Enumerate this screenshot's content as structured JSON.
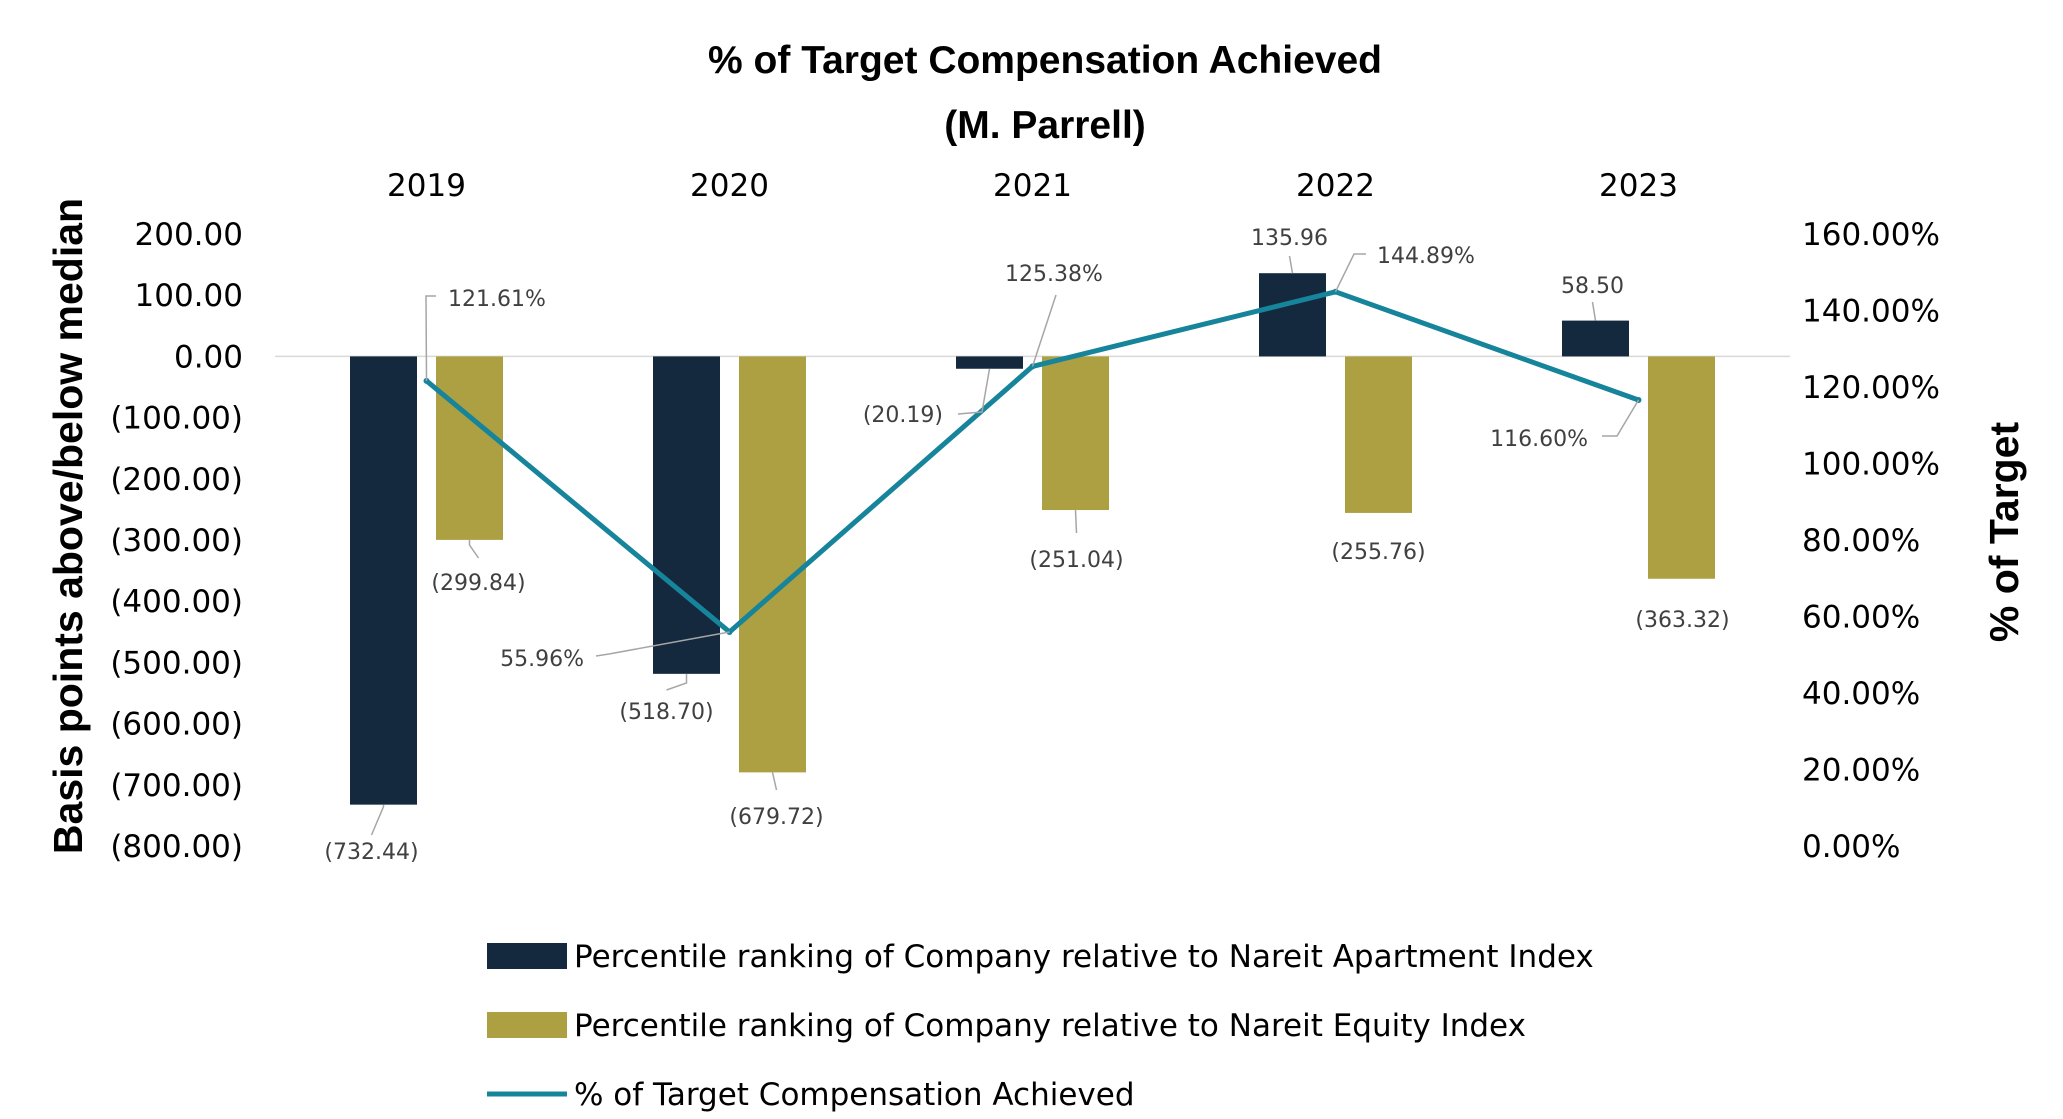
{
  "chart_data": {
    "type": "bar",
    "title": "% of Target Compensation Achieved",
    "subtitle": "(M. Parrell)",
    "categories": [
      "2019",
      "2020",
      "2021",
      "2022",
      "2023"
    ],
    "ylabel": "Basis points above/below median",
    "y2label": "% of Target",
    "ylim": [
      -800,
      200
    ],
    "y_ticks": [
      "200.00",
      "100.00",
      "0.00",
      "(100.00)",
      "(200.00)",
      "(300.00)",
      "(400.00)",
      "(500.00)",
      "(600.00)",
      "(700.00)",
      "(800.00)"
    ],
    "y2lim": [
      0,
      160
    ],
    "y2_ticks": [
      "160.00%",
      "140.00%",
      "120.00%",
      "100.00%",
      "80.00%",
      "60.00%",
      "40.00%",
      "20.00%",
      "0.00%"
    ],
    "series": [
      {
        "name": "Percentile ranking of Company relative to Nareit Apartment Index",
        "kind": "bar",
        "axis": "left",
        "color": "#14293d",
        "values": [
          -732.44,
          -518.7,
          -20.19,
          135.96,
          58.5
        ],
        "labels": [
          "(732.44)",
          "(518.70)",
          "(20.19)",
          "135.96",
          "58.50"
        ]
      },
      {
        "name": "Percentile ranking of Company relative to Nareit Equity Index",
        "kind": "bar",
        "axis": "left",
        "color": "#ada042",
        "values": [
          -299.84,
          -679.72,
          -251.04,
          -255.76,
          -363.32
        ],
        "labels": [
          "(299.84)",
          "(679.72)",
          "(251.04)",
          "(255.76)",
          "(363.32)"
        ]
      },
      {
        "name": "% of Target Compensation Achieved",
        "kind": "line",
        "axis": "right",
        "color": "#16849a",
        "values": [
          121.61,
          55.96,
          125.38,
          144.89,
          116.6
        ],
        "labels": [
          "121.61%",
          "55.96%",
          "125.38%",
          "144.89%",
          "116.60%"
        ]
      }
    ],
    "grid": false,
    "legend_position": "bottom"
  }
}
